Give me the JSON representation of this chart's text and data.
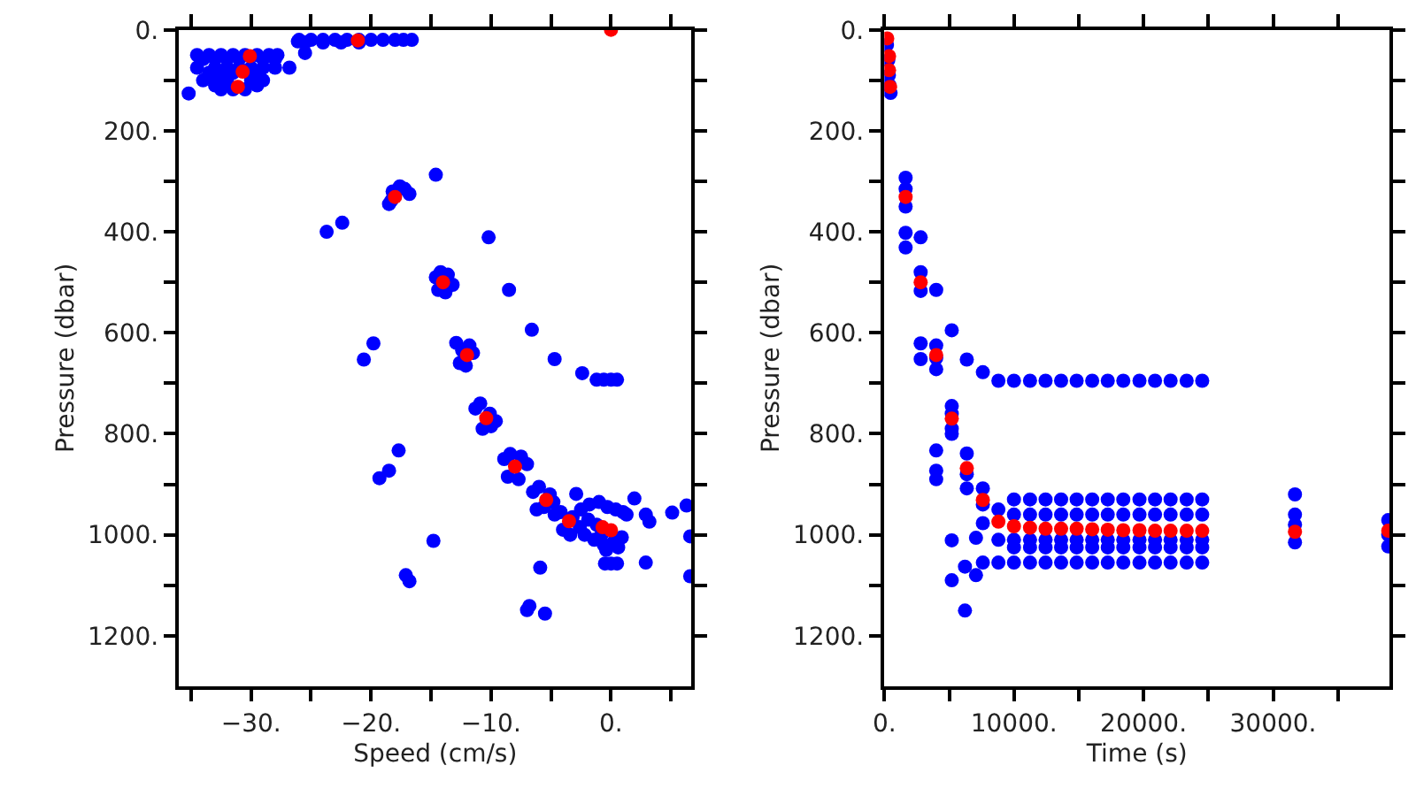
{
  "chart_data": [
    {
      "type": "scatter",
      "xlabel": "Speed (cm/s)",
      "ylabel": "Pressure (dbar)",
      "marker": "circle",
      "xlim": [
        -36,
        6.7
      ],
      "ylim": [
        1300,
        0
      ],
      "xticks": [
        {
          "value": -35,
          "label": null
        },
        {
          "value": -30,
          "label": "−30."
        },
        {
          "value": -25,
          "label": null
        },
        {
          "value": -20,
          "label": "−20."
        },
        {
          "value": -15,
          "label": null
        },
        {
          "value": -10,
          "label": "−10."
        },
        {
          "value": -5,
          "label": null
        },
        {
          "value": 0,
          "label": "0."
        },
        {
          "value": 5,
          "label": null
        }
      ],
      "yticks": [
        {
          "value": 0,
          "label": "0."
        },
        {
          "value": 100,
          "label": null
        },
        {
          "value": 200,
          "label": "200."
        },
        {
          "value": 300,
          "label": null
        },
        {
          "value": 400,
          "label": "400."
        },
        {
          "value": 500,
          "label": null
        },
        {
          "value": 600,
          "label": "600."
        },
        {
          "value": 700,
          "label": null
        },
        {
          "value": 800,
          "label": "800."
        },
        {
          "value": 900,
          "label": null
        },
        {
          "value": 1000,
          "label": "1000."
        },
        {
          "value": 1100,
          "label": null
        },
        {
          "value": 1200,
          "label": "1200."
        }
      ],
      "series": [
        {
          "color": "#0000ff",
          "x": [
            -34.5,
            -33.5,
            -32.5,
            -31.5,
            -30.5,
            -29.5,
            -28.5,
            -27.8,
            -34,
            -33,
            -32,
            -31,
            -29,
            -28,
            -34.5,
            -33,
            -32,
            -31,
            -30,
            -29,
            -28,
            -26.8,
            -33.5,
            -32.5,
            -31.5,
            -29.5,
            -34,
            -33,
            -32,
            -30,
            -29,
            -33,
            -29.5,
            -32.5,
            -31.5,
            -30.5,
            -35.2,
            -26,
            -25,
            -24,
            -23,
            -22,
            -21,
            -20,
            -19,
            -18,
            -17.3,
            -16.6,
            -25.5,
            -24,
            -22.5,
            -21,
            -26.1,
            -25.5,
            -14.6,
            -23.7,
            -22.4,
            -18.5,
            -18.2,
            -17.6,
            -17.2,
            -16.8,
            -18.3,
            -10.2,
            -14.6,
            -14.2,
            -13.6,
            -13.2,
            -14.4,
            -13.8,
            -8.5,
            -6.6,
            -4.7,
            -2.4,
            -1.2,
            -0.6,
            0,
            0.5,
            -20.6,
            -19.8,
            -12.9,
            -12.4,
            -11.8,
            -11.5,
            -12.6,
            -12.1,
            -11.3,
            -10.9,
            -10.1,
            -9.6,
            -10.7,
            -10.0,
            -17.7,
            -19.3,
            -18.5,
            -8.9,
            -8.4,
            -7.5,
            -7.0,
            -8.6,
            -7.7,
            -6.5,
            -6.0,
            -5.1,
            -4.8,
            -6.2,
            -5.6,
            -2.9,
            -4.7,
            -4.2,
            -3.2,
            -2.6,
            -4.0,
            -3.4,
            -2.5,
            -1.8,
            -1.0,
            -0.3,
            0.4,
            1.0,
            1.3,
            -2.2,
            -1.4,
            -0.6,
            0.2,
            0.9,
            -1.9,
            -1.2,
            -0.4,
            0.6,
            -0.8,
            1.95,
            2.9,
            3.2,
            5.1,
            6.3,
            6.6,
            6.6,
            2.9,
            -0.5,
            0,
            0.5,
            -5.9,
            -14.8,
            -17.1,
            -16.8,
            -7.0,
            -6.8,
            -5.5
          ],
          "values": [
            50,
            50,
            50,
            50,
            50,
            50,
            50,
            50,
            58,
            58,
            58,
            58,
            58,
            58,
            75,
            75,
            75,
            75,
            75,
            75,
            75,
            75,
            85,
            85,
            85,
            85,
            100,
            100,
            100,
            100,
            100,
            110,
            110,
            118,
            118,
            118,
            126,
            20,
            20,
            20,
            20,
            20,
            20,
            20,
            20,
            20,
            20,
            20,
            25,
            25,
            25,
            25,
            23,
            46,
            287,
            400,
            382,
            345,
            320,
            310,
            315,
            325,
            338,
            411,
            490,
            480,
            485,
            505,
            515,
            520,
            515,
            594,
            652,
            680,
            693,
            693,
            693,
            693,
            653,
            621,
            620,
            635,
            625,
            640,
            660,
            665,
            750,
            740,
            760,
            775,
            790,
            785,
            833,
            888,
            873,
            850,
            840,
            845,
            860,
            885,
            890,
            915,
            905,
            920,
            935,
            950,
            945,
            919,
            960,
            955,
            965,
            985,
            990,
            1000,
            950,
            940,
            935,
            945,
            950,
            955,
            960,
            1000,
            1010,
            1020,
            1015,
            1005,
            970,
            980,
            1030,
            1025,
            1000,
            928,
            960,
            974,
            956,
            942,
            1003,
            1082,
            1055,
            1057,
            1057,
            1057,
            1065,
            1012,
            1080,
            1092,
            1149,
            1141,
            1156
          ]
        },
        {
          "color": "#ff0000",
          "x": [
            -30.1,
            -30.7,
            -31.1,
            -21.1,
            0,
            -18.0,
            -14.0,
            -12.0,
            -10.4,
            -8.0,
            -5.4,
            -3.5,
            -0.7,
            0
          ],
          "values": [
            52,
            83,
            113,
            21,
            0,
            331,
            500,
            644,
            769,
            865,
            931,
            973,
            985,
            991
          ]
        }
      ]
    },
    {
      "type": "scatter",
      "xlabel": "Time (s)",
      "ylabel": "Pressure (dbar)",
      "marker": "circle",
      "xlim": [
        0,
        39000
      ],
      "ylim": [
        1300,
        0
      ],
      "xticks": [
        {
          "value": 0,
          "label": "0."
        },
        {
          "value": 5000,
          "label": null
        },
        {
          "value": 10000,
          "label": "10000."
        },
        {
          "value": 15000,
          "label": null
        },
        {
          "value": 20000,
          "label": "20000."
        },
        {
          "value": 25000,
          "label": null
        },
        {
          "value": 30000,
          "label": "30000."
        },
        {
          "value": 35000,
          "label": null
        }
      ],
      "yticks": [
        {
          "value": 0,
          "label": "0."
        },
        {
          "value": 100,
          "label": null
        },
        {
          "value": 200,
          "label": "200."
        },
        {
          "value": 300,
          "label": null
        },
        {
          "value": 400,
          "label": "400."
        },
        {
          "value": 500,
          "label": null
        },
        {
          "value": 600,
          "label": "600."
        },
        {
          "value": 700,
          "label": null
        },
        {
          "value": 800,
          "label": "800."
        },
        {
          "value": 900,
          "label": null
        },
        {
          "value": 1000,
          "label": "1000."
        },
        {
          "value": 1100,
          "label": null
        },
        {
          "value": 1200,
          "label": "1200."
        }
      ],
      "series": [
        {
          "color": "#0000ff",
          "x": [
            200,
            300,
            350,
            400,
            480,
            1640,
            1640,
            1640,
            1640,
            1640,
            2800,
            2800,
            2800,
            2800,
            2800,
            4000,
            4000,
            4000,
            4000,
            4000,
            4000,
            4000,
            5200,
            5200,
            5200,
            5200,
            5200,
            5200,
            5200,
            6360,
            6360,
            6360,
            6360,
            6220,
            6220,
            7070,
            7070,
            7600,
            7600,
            7600,
            7600,
            7600,
            8800,
            8800,
            8800,
            8800,
            10000,
            10000,
            10000,
            10000,
            10000,
            10000,
            11240,
            11240,
            11240,
            11240,
            11240,
            11240,
            12440,
            12440,
            12440,
            12440,
            12440,
            12440,
            13640,
            13640,
            13640,
            13640,
            13640,
            13640,
            14840,
            14840,
            14840,
            14840,
            14840,
            14840,
            16040,
            16040,
            16040,
            16040,
            16040,
            16040,
            17240,
            17240,
            17240,
            17240,
            17240,
            17240,
            18440,
            18440,
            18440,
            18440,
            18440,
            18440,
            19690,
            19690,
            19690,
            19690,
            19690,
            19690,
            20890,
            20890,
            20890,
            20890,
            20890,
            20890,
            22090,
            22090,
            22090,
            22090,
            22090,
            22090,
            23330,
            23330,
            23330,
            23330,
            23330,
            23330,
            24530,
            24530,
            24530,
            24530,
            24530,
            24530,
            31690,
            31690,
            31690,
            31690,
            38890,
            38890,
            38890
          ],
          "values": [
            30,
            60,
            90,
            110,
            125,
            293,
            315,
            350,
            402,
            431,
            411,
            480,
            517,
            621,
            652,
            515,
            625,
            650,
            672,
            833,
            873,
            890,
            595,
            745,
            760,
            790,
            800,
            1011,
            1090,
            653,
            839,
            880,
            908,
            1063,
            1150,
            1006,
            1080,
            678,
            908,
            940,
            977,
            1055,
            695,
            950,
            1010,
            1055,
            695,
            930,
            960,
            1010,
            1025,
            1055,
            695,
            930,
            960,
            1010,
            1025,
            1055,
            695,
            930,
            960,
            1010,
            1025,
            1055,
            695,
            930,
            960,
            1010,
            1025,
            1055,
            695,
            930,
            960,
            1010,
            1025,
            1055,
            695,
            930,
            960,
            1010,
            1025,
            1055,
            695,
            930,
            960,
            1010,
            1025,
            1055,
            695,
            930,
            960,
            1010,
            1025,
            1055,
            695,
            930,
            960,
            1010,
            1025,
            1055,
            695,
            930,
            960,
            1010,
            1025,
            1055,
            695,
            930,
            960,
            1010,
            1025,
            1055,
            695,
            930,
            960,
            1010,
            1025,
            1055,
            695,
            930,
            960,
            1010,
            1025,
            1055,
            920,
            960,
            980,
            1015,
            971,
            1000,
            1023
          ]
        },
        {
          "color": "#ff0000",
          "x": [
            220,
            360,
            360,
            440,
            1640,
            2800,
            4000,
            5200,
            6360,
            7600,
            8800,
            10000,
            11240,
            12440,
            13640,
            14840,
            16040,
            17240,
            18440,
            19690,
            20890,
            22090,
            23330,
            24530,
            31690,
            38890
          ],
          "values": [
            17,
            52,
            80,
            113,
            331,
            500,
            644,
            770,
            868,
            931,
            974,
            983,
            986,
            988,
            988,
            988,
            989,
            990,
            991,
            991,
            992,
            992,
            992,
            992,
            994,
            992
          ]
        }
      ]
    }
  ]
}
